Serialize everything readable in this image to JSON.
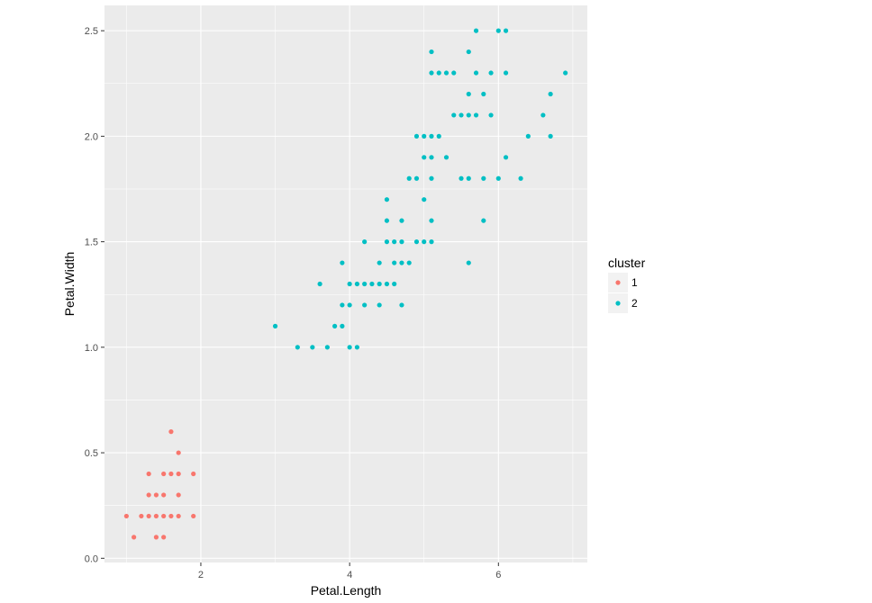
{
  "chart_data": {
    "type": "scatter",
    "title": "",
    "xlabel": "Petal.Length",
    "ylabel": "Petal.Width",
    "xlim": [
      0.705,
      7.195
    ],
    "ylim": [
      -0.02,
      2.62
    ],
    "x_ticks": [
      2,
      4,
      6
    ],
    "x_tick_labels": [
      "2",
      "4",
      "6"
    ],
    "y_ticks": [
      0.0,
      0.5,
      1.0,
      1.5,
      2.0,
      2.5
    ],
    "y_tick_labels": [
      "0.0",
      "0.5",
      "1.0",
      "1.5",
      "2.0",
      "2.5"
    ],
    "grid": true,
    "legend": {
      "title": "cluster",
      "position": "right"
    },
    "series": [
      {
        "name": "1",
        "color": "#F8766D",
        "points": [
          [
            1.6,
            0.6
          ],
          [
            1.7,
            0.5
          ],
          [
            1.3,
            0.4
          ],
          [
            1.5,
            0.4
          ],
          [
            1.6,
            0.4
          ],
          [
            1.7,
            0.4
          ],
          [
            1.9,
            0.4
          ],
          [
            1.3,
            0.3
          ],
          [
            1.4,
            0.3
          ],
          [
            1.5,
            0.3
          ],
          [
            1.7,
            0.3
          ],
          [
            1.0,
            0.2
          ],
          [
            1.2,
            0.2
          ],
          [
            1.3,
            0.2
          ],
          [
            1.4,
            0.2
          ],
          [
            1.5,
            0.2
          ],
          [
            1.6,
            0.2
          ],
          [
            1.7,
            0.2
          ],
          [
            1.9,
            0.2
          ],
          [
            1.1,
            0.1
          ],
          [
            1.4,
            0.1
          ],
          [
            1.5,
            0.1
          ]
        ]
      },
      {
        "name": "2",
        "color": "#00BFC4",
        "points": [
          [
            5.7,
            2.5
          ],
          [
            6.0,
            2.5
          ],
          [
            6.1,
            2.5
          ],
          [
            5.1,
            2.4
          ],
          [
            5.6,
            2.4
          ],
          [
            5.1,
            2.3
          ],
          [
            5.2,
            2.3
          ],
          [
            5.3,
            2.3
          ],
          [
            5.4,
            2.3
          ],
          [
            5.7,
            2.3
          ],
          [
            5.9,
            2.3
          ],
          [
            6.1,
            2.3
          ],
          [
            6.9,
            2.3
          ],
          [
            5.6,
            2.2
          ],
          [
            5.8,
            2.2
          ],
          [
            6.7,
            2.2
          ],
          [
            5.4,
            2.1
          ],
          [
            5.5,
            2.1
          ],
          [
            5.6,
            2.1
          ],
          [
            5.7,
            2.1
          ],
          [
            5.9,
            2.1
          ],
          [
            6.6,
            2.1
          ],
          [
            4.9,
            2.0
          ],
          [
            5.0,
            2.0
          ],
          [
            5.1,
            2.0
          ],
          [
            5.2,
            2.0
          ],
          [
            6.4,
            2.0
          ],
          [
            6.7,
            2.0
          ],
          [
            5.0,
            1.9
          ],
          [
            5.1,
            1.9
          ],
          [
            5.3,
            1.9
          ],
          [
            6.1,
            1.9
          ],
          [
            4.8,
            1.8
          ],
          [
            4.9,
            1.8
          ],
          [
            5.1,
            1.8
          ],
          [
            5.5,
            1.8
          ],
          [
            5.6,
            1.8
          ],
          [
            5.8,
            1.8
          ],
          [
            6.0,
            1.8
          ],
          [
            6.3,
            1.8
          ],
          [
            4.5,
            1.7
          ],
          [
            5.0,
            1.7
          ],
          [
            4.5,
            1.6
          ],
          [
            4.7,
            1.6
          ],
          [
            5.1,
            1.6
          ],
          [
            5.8,
            1.6
          ],
          [
            4.2,
            1.5
          ],
          [
            4.5,
            1.5
          ],
          [
            4.6,
            1.5
          ],
          [
            4.7,
            1.5
          ],
          [
            4.9,
            1.5
          ],
          [
            5.0,
            1.5
          ],
          [
            5.1,
            1.5
          ],
          [
            3.9,
            1.4
          ],
          [
            4.4,
            1.4
          ],
          [
            4.6,
            1.4
          ],
          [
            4.7,
            1.4
          ],
          [
            4.8,
            1.4
          ],
          [
            5.6,
            1.4
          ],
          [
            3.6,
            1.3
          ],
          [
            4.0,
            1.3
          ],
          [
            4.1,
            1.3
          ],
          [
            4.2,
            1.3
          ],
          [
            4.3,
            1.3
          ],
          [
            4.4,
            1.3
          ],
          [
            4.5,
            1.3
          ],
          [
            4.6,
            1.3
          ],
          [
            3.9,
            1.2
          ],
          [
            4.0,
            1.2
          ],
          [
            4.2,
            1.2
          ],
          [
            4.4,
            1.2
          ],
          [
            4.7,
            1.2
          ],
          [
            3.0,
            1.1
          ],
          [
            3.8,
            1.1
          ],
          [
            3.9,
            1.1
          ],
          [
            3.3,
            1.0
          ],
          [
            3.5,
            1.0
          ],
          [
            3.7,
            1.0
          ],
          [
            4.0,
            1.0
          ],
          [
            4.1,
            1.0
          ]
        ]
      }
    ]
  }
}
